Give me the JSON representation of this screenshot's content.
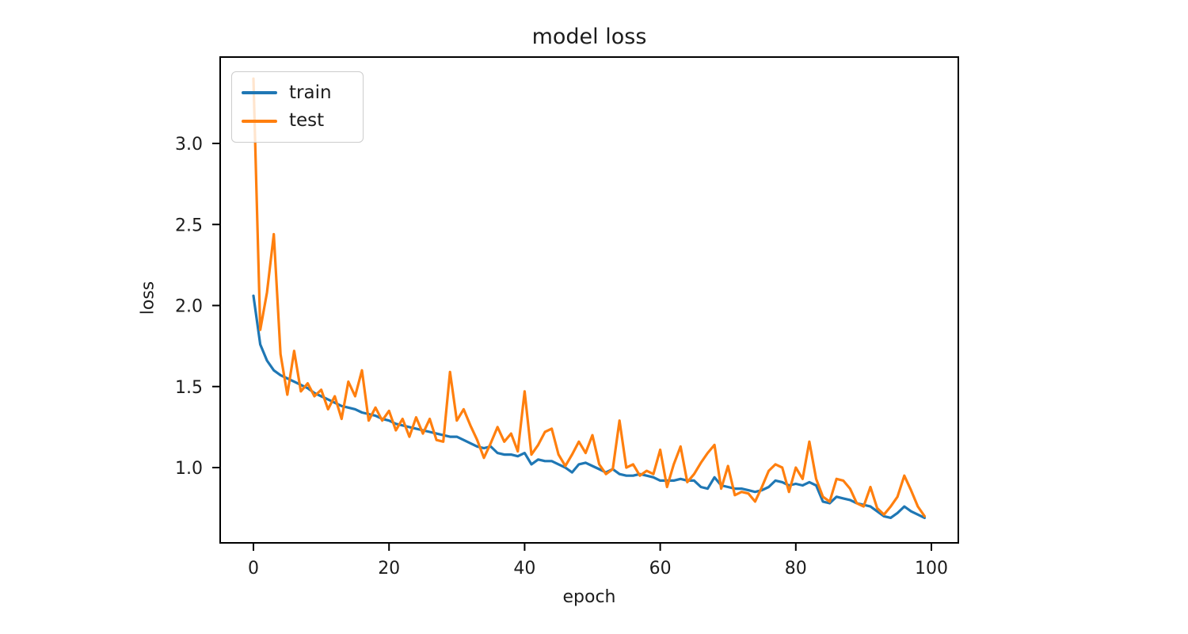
{
  "figure": {
    "title": "model loss",
    "x_axis_label": "epoch",
    "y_axis_label": "loss",
    "x_tick_labels": [
      "0",
      "20",
      "40",
      "60",
      "80",
      "100"
    ],
    "y_tick_labels": [
      "1.0",
      "1.5",
      "2.0",
      "2.5",
      "3.0"
    ],
    "legend_entries": [
      "train",
      "test"
    ],
    "colors": {
      "train": "#1f77b4",
      "test": "#ff7f0e",
      "spine": "#000000",
      "text": "#1c1c1c",
      "legend_border": "#cccccc"
    }
  },
  "chart_data": {
    "type": "line",
    "title": "model loss",
    "xlabel": "epoch",
    "ylabel": "loss",
    "x_start": 0,
    "x_step": 1,
    "n_points": 100,
    "xlim": [
      -4.95,
      103.95
    ],
    "ylim": [
      0.54,
      3.53
    ],
    "xticks": [
      0,
      20,
      40,
      60,
      80,
      100
    ],
    "yticks": [
      1.0,
      1.5,
      2.0,
      2.5,
      3.0
    ],
    "grid": false,
    "legend_position": "upper-left",
    "series": [
      {
        "name": "train",
        "color": "#1f77b4",
        "values": [
          2.06,
          1.76,
          1.66,
          1.6,
          1.57,
          1.55,
          1.53,
          1.51,
          1.49,
          1.46,
          1.44,
          1.42,
          1.4,
          1.38,
          1.37,
          1.36,
          1.34,
          1.33,
          1.32,
          1.3,
          1.29,
          1.27,
          1.26,
          1.25,
          1.24,
          1.23,
          1.22,
          1.21,
          1.2,
          1.19,
          1.19,
          1.17,
          1.15,
          1.13,
          1.12,
          1.13,
          1.09,
          1.08,
          1.08,
          1.07,
          1.09,
          1.02,
          1.05,
          1.04,
          1.04,
          1.02,
          1.0,
          0.97,
          1.02,
          1.03,
          1.01,
          0.99,
          0.97,
          0.99,
          0.96,
          0.95,
          0.95,
          0.96,
          0.95,
          0.94,
          0.92,
          0.92,
          0.92,
          0.93,
          0.92,
          0.92,
          0.88,
          0.87,
          0.94,
          0.89,
          0.88,
          0.87,
          0.87,
          0.86,
          0.85,
          0.86,
          0.88,
          0.92,
          0.91,
          0.89,
          0.9,
          0.89,
          0.91,
          0.89,
          0.79,
          0.78,
          0.82,
          0.81,
          0.8,
          0.78,
          0.77,
          0.76,
          0.73,
          0.7,
          0.69,
          0.72,
          0.76,
          0.73,
          0.71,
          0.69
        ]
      },
      {
        "name": "test",
        "color": "#ff7f0e",
        "values": [
          3.4,
          1.85,
          2.08,
          2.44,
          1.7,
          1.45,
          1.72,
          1.47,
          1.52,
          1.44,
          1.48,
          1.36,
          1.44,
          1.3,
          1.53,
          1.44,
          1.6,
          1.29,
          1.37,
          1.29,
          1.35,
          1.23,
          1.3,
          1.19,
          1.31,
          1.21,
          1.3,
          1.17,
          1.16,
          1.59,
          1.29,
          1.36,
          1.26,
          1.17,
          1.06,
          1.15,
          1.25,
          1.16,
          1.21,
          1.1,
          1.47,
          1.08,
          1.14,
          1.22,
          1.24,
          1.08,
          1.01,
          1.08,
          1.16,
          1.09,
          1.2,
          1.02,
          0.96,
          0.99,
          1.29,
          1.0,
          1.02,
          0.95,
          0.98,
          0.96,
          1.11,
          0.88,
          1.02,
          1.13,
          0.91,
          0.96,
          1.03,
          1.09,
          1.14,
          0.87,
          1.01,
          0.83,
          0.85,
          0.84,
          0.79,
          0.88,
          0.98,
          1.02,
          1.0,
          0.85,
          1.0,
          0.93,
          1.16,
          0.93,
          0.82,
          0.79,
          0.93,
          0.92,
          0.87,
          0.78,
          0.76,
          0.88,
          0.75,
          0.71,
          0.76,
          0.82,
          0.95,
          0.86,
          0.76,
          0.7
        ]
      }
    ]
  }
}
